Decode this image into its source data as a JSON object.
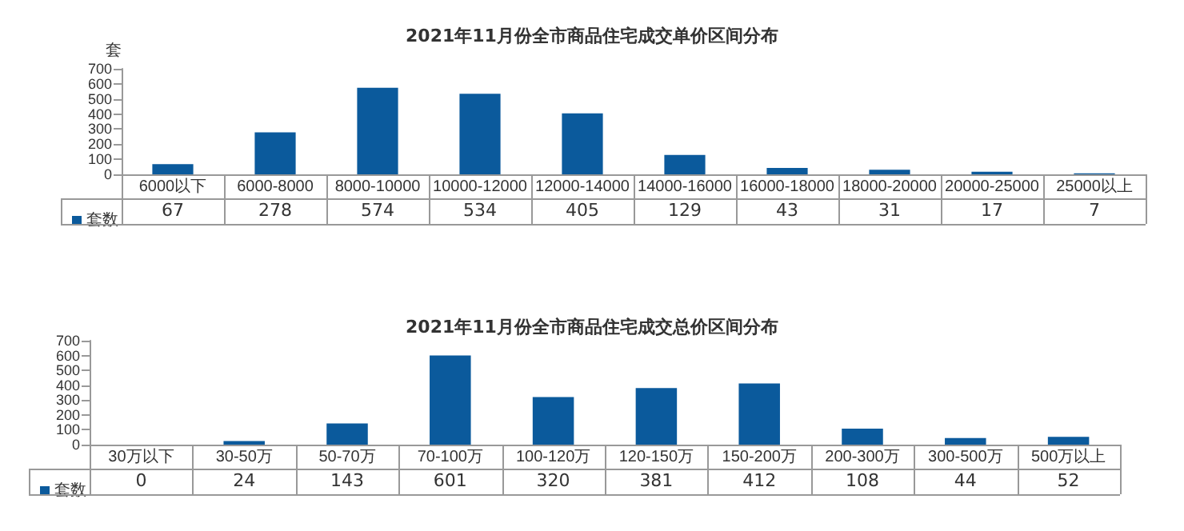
{
  "chart_data": [
    {
      "type": "bar",
      "title": "2021年11月份全市商品住宅成交单价区间分布",
      "ylabel": "套",
      "categories": [
        "6000以下",
        "6000-8000",
        "8000-10000",
        "10000-12000",
        "12000-14000",
        "14000-16000",
        "16000-18000",
        "18000-20000",
        "20000-25000",
        "25000以上"
      ],
      "series": [
        {
          "name": "套数",
          "color": "#0b5a9c",
          "values": [
            67,
            278,
            574,
            534,
            405,
            129,
            43,
            31,
            17,
            7
          ]
        }
      ],
      "ylim": [
        0,
        700
      ],
      "yticks": [
        0,
        100,
        200,
        300,
        400,
        500,
        600,
        700
      ],
      "data_labels": true,
      "legend": "bottom left"
    },
    {
      "type": "bar",
      "title": "2021年11月份全市商品住宅成交总价区间分布",
      "categories": [
        "30万以下",
        "30-50万",
        "50-70万",
        "70-100万",
        "100-120万",
        "120-150万",
        "150-200万",
        "200-300万",
        "300-500万",
        "500万以上"
      ],
      "series": [
        {
          "name": "套数",
          "color": "#0b5a9c",
          "values": [
            0,
            24,
            143,
            601,
            320,
            381,
            412,
            108,
            44,
            52
          ]
        }
      ],
      "ylim": [
        0,
        700
      ],
      "yticks": [
        0,
        100,
        200,
        300,
        400,
        500,
        600,
        700
      ],
      "data_labels": true,
      "legend": "bottom left"
    }
  ]
}
